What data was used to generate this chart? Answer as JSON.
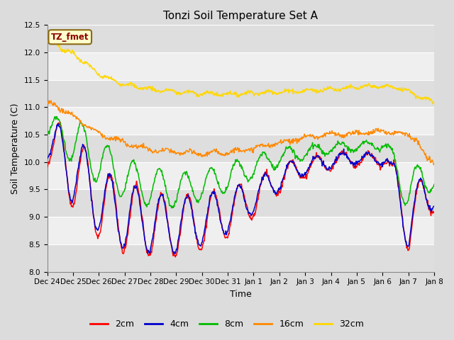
{
  "title": "Tonzi Soil Temperature Set A",
  "xlabel": "Time",
  "ylabel": "Soil Temperature (C)",
  "ylim": [
    8.0,
    12.5
  ],
  "yticks": [
    8.0,
    8.5,
    9.0,
    9.5,
    10.0,
    10.5,
    11.0,
    11.5,
    12.0,
    12.5
  ],
  "annotation_label": "TZ_fmet",
  "annotation_color": "#8B0000",
  "annotation_bg": "#FFFFCC",
  "annotation_border": "#8B6914",
  "colors": {
    "2cm": "#FF0000",
    "4cm": "#0000CC",
    "8cm": "#00BB00",
    "16cm": "#FF8800",
    "32cm": "#FFD700"
  },
  "bg_color": "#DCDCDC",
  "plot_bg_light": "#EFEFEF",
  "plot_bg_dark": "#DEDEDE",
  "grid_color": "#FFFFFF",
  "x_labels": [
    "Dec 24",
    "Dec 25",
    "Dec 26",
    "Dec 27",
    "Dec 28",
    "Dec 29",
    "Dec 30",
    "Dec 31",
    "Jan 1",
    "Jan 2",
    "Jan 3",
    "Jan 4",
    "Jan 5",
    "Jan 6",
    "Jan 7",
    "Jan 8"
  ]
}
